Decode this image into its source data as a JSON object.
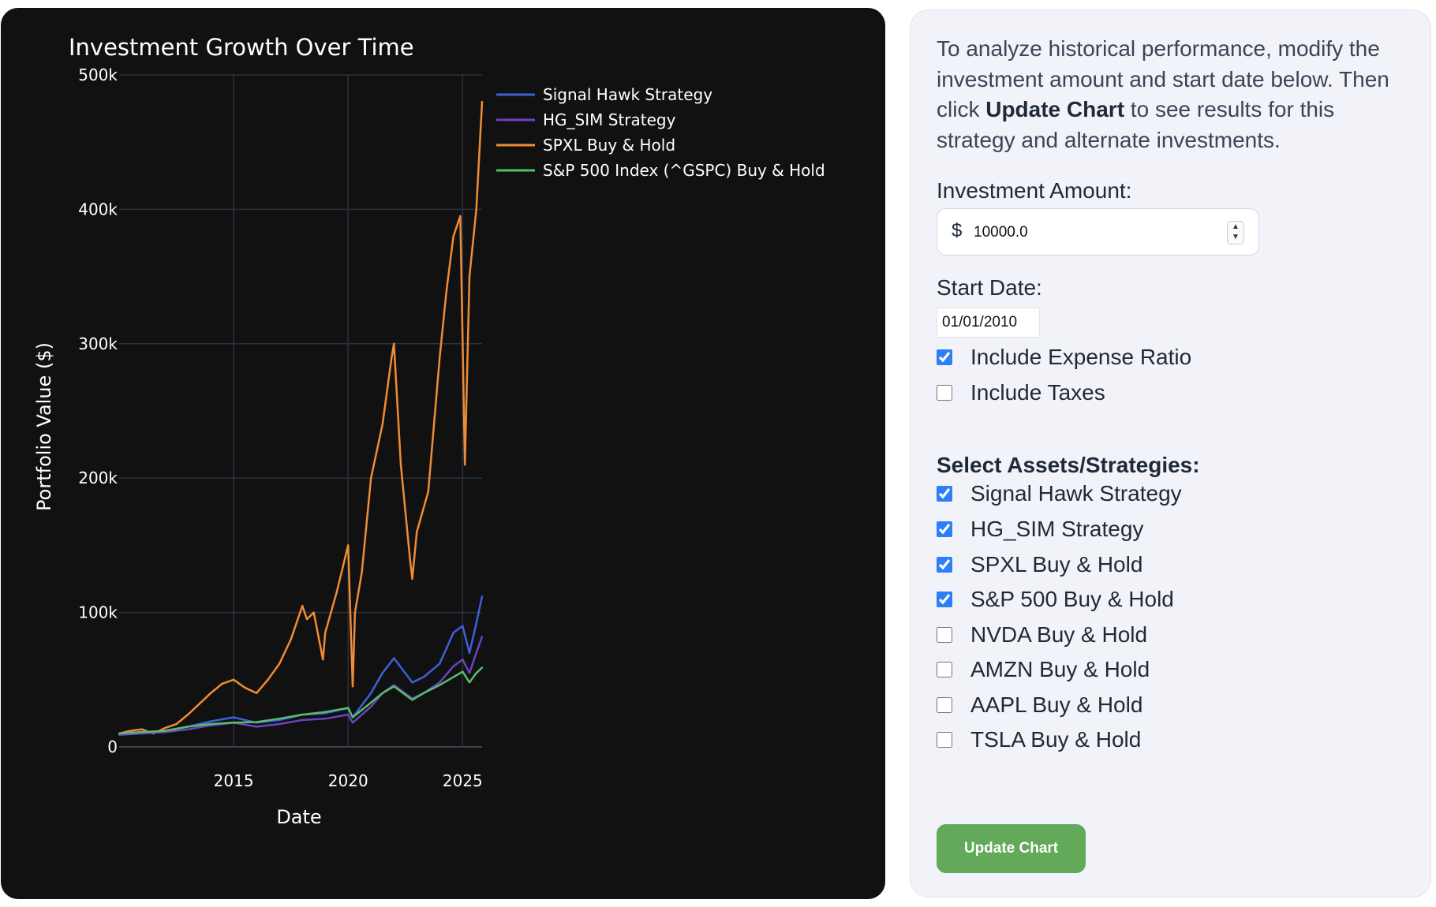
{
  "chart": {
    "colors": {
      "background": "#111111",
      "grid": "#2a3040",
      "text": "#ffffff",
      "signal_hawk": "#3e5fde",
      "hg_sim": "#6a43c2",
      "spxl": "#f08c34",
      "sp500": "#58bd6b"
    }
  },
  "chart_data": {
    "type": "line",
    "title": "Investment Growth Over Time",
    "xlabel": "Date",
    "ylabel": "Portfolio Value ($)",
    "x_ticks": [
      "2015",
      "2020",
      "2025"
    ],
    "y_ticks": [
      "0",
      "100k",
      "200k",
      "300k",
      "400k",
      "500k"
    ],
    "xlim": [
      2010.0,
      2025.85
    ],
    "ylim": [
      0,
      500000
    ],
    "grid": true,
    "legend_position": "right",
    "series": [
      {
        "name": "Signal Hawk Strategy",
        "color": "#3e5fde",
        "x": [
          2010.0,
          2011.0,
          2012.0,
          2013.0,
          2014.0,
          2015.0,
          2016.0,
          2017.0,
          2018.0,
          2019.0,
          2020.0,
          2020.2,
          2021.0,
          2021.5,
          2022.0,
          2022.8,
          2023.3,
          2024.0,
          2024.6,
          2025.0,
          2025.3,
          2025.6,
          2025.85
        ],
        "y": [
          10000,
          11000,
          12000,
          15000,
          19000,
          22000,
          18000,
          20000,
          24000,
          25000,
          29000,
          22000,
          40000,
          55000,
          66000,
          48000,
          52000,
          62000,
          85000,
          90000,
          70000,
          92000,
          112000
        ]
      },
      {
        "name": "HG_SIM Strategy",
        "color": "#6a43c2",
        "x": [
          2010.0,
          2011.0,
          2012.0,
          2013.0,
          2014.0,
          2015.0,
          2016.0,
          2017.0,
          2018.0,
          2019.0,
          2020.0,
          2020.2,
          2021.0,
          2021.5,
          2022.0,
          2022.8,
          2023.3,
          2024.0,
          2024.6,
          2025.0,
          2025.3,
          2025.6,
          2025.85
        ],
        "y": [
          9000,
          10000,
          11000,
          13000,
          16000,
          18000,
          15000,
          17000,
          20000,
          21000,
          24000,
          18000,
          30000,
          40000,
          46000,
          36000,
          40000,
          48000,
          60000,
          65000,
          55000,
          70000,
          82000
        ]
      },
      {
        "name": "SPXL Buy & Hold",
        "color": "#f08c34",
        "x": [
          2010.0,
          2010.5,
          2011.0,
          2011.5,
          2012.0,
          2012.5,
          2013.0,
          2013.5,
          2014.0,
          2014.5,
          2015.0,
          2015.5,
          2016.0,
          2016.5,
          2017.0,
          2017.5,
          2018.0,
          2018.2,
          2018.5,
          2018.9,
          2019.0,
          2019.5,
          2020.0,
          2020.2,
          2020.3,
          2020.6,
          2021.0,
          2021.5,
          2021.9,
          2022.0,
          2022.3,
          2022.7,
          2022.8,
          2023.0,
          2023.5,
          2024.0,
          2024.3,
          2024.6,
          2024.9,
          2025.1,
          2025.3,
          2025.6,
          2025.85
        ],
        "y": [
          10000,
          12000,
          13000,
          10000,
          14000,
          17000,
          24000,
          32000,
          40000,
          47000,
          50000,
          44000,
          40000,
          50000,
          62000,
          80000,
          105000,
          95000,
          100000,
          65000,
          85000,
          115000,
          150000,
          45000,
          100000,
          130000,
          200000,
          240000,
          290000,
          300000,
          210000,
          140000,
          125000,
          160000,
          190000,
          290000,
          340000,
          380000,
          395000,
          210000,
          350000,
          400000,
          480000
        ]
      },
      {
        "name": "S&P 500 Index (^GSPC) Buy & Hold",
        "color": "#58bd6b",
        "x": [
          2010.0,
          2011.0,
          2012.0,
          2013.0,
          2014.0,
          2015.0,
          2016.0,
          2017.0,
          2018.0,
          2019.0,
          2020.0,
          2020.2,
          2021.0,
          2021.5,
          2022.0,
          2022.8,
          2023.3,
          2024.0,
          2024.6,
          2025.0,
          2025.3,
          2025.6,
          2025.85
        ],
        "y": [
          10000,
          11000,
          12000,
          15000,
          17000,
          18000,
          18500,
          21000,
          24000,
          26000,
          29000,
          22000,
          33000,
          40000,
          45000,
          35000,
          40000,
          46000,
          52000,
          56000,
          48000,
          55000,
          59000
        ]
      }
    ]
  },
  "panel": {
    "intro_before": "To analyze historical performance, modify the investment amount and start date below. Then click ",
    "intro_bold": "Update Chart",
    "intro_after": " to see results for this strategy and alternate investments.",
    "amount_label": "Investment Amount:",
    "currency_symbol": "$",
    "amount_value": "10000.0",
    "start_date_label": "Start Date:",
    "start_date_value": "01/01/2010",
    "options": [
      {
        "label": "Include Expense Ratio",
        "checked": true
      },
      {
        "label": "Include Taxes",
        "checked": false
      }
    ],
    "assets_title": "Select Assets/Strategies:",
    "assets": [
      {
        "label": "Signal Hawk Strategy",
        "checked": true
      },
      {
        "label": "HG_SIM Strategy",
        "checked": true
      },
      {
        "label": "SPXL Buy & Hold",
        "checked": true
      },
      {
        "label": "S&P 500 Buy & Hold",
        "checked": true
      },
      {
        "label": "NVDA Buy & Hold",
        "checked": false
      },
      {
        "label": "AMZN Buy & Hold",
        "checked": false
      },
      {
        "label": "AAPL Buy & Hold",
        "checked": false
      },
      {
        "label": "TSLA Buy & Hold",
        "checked": false
      }
    ],
    "update_button": "Update Chart"
  }
}
